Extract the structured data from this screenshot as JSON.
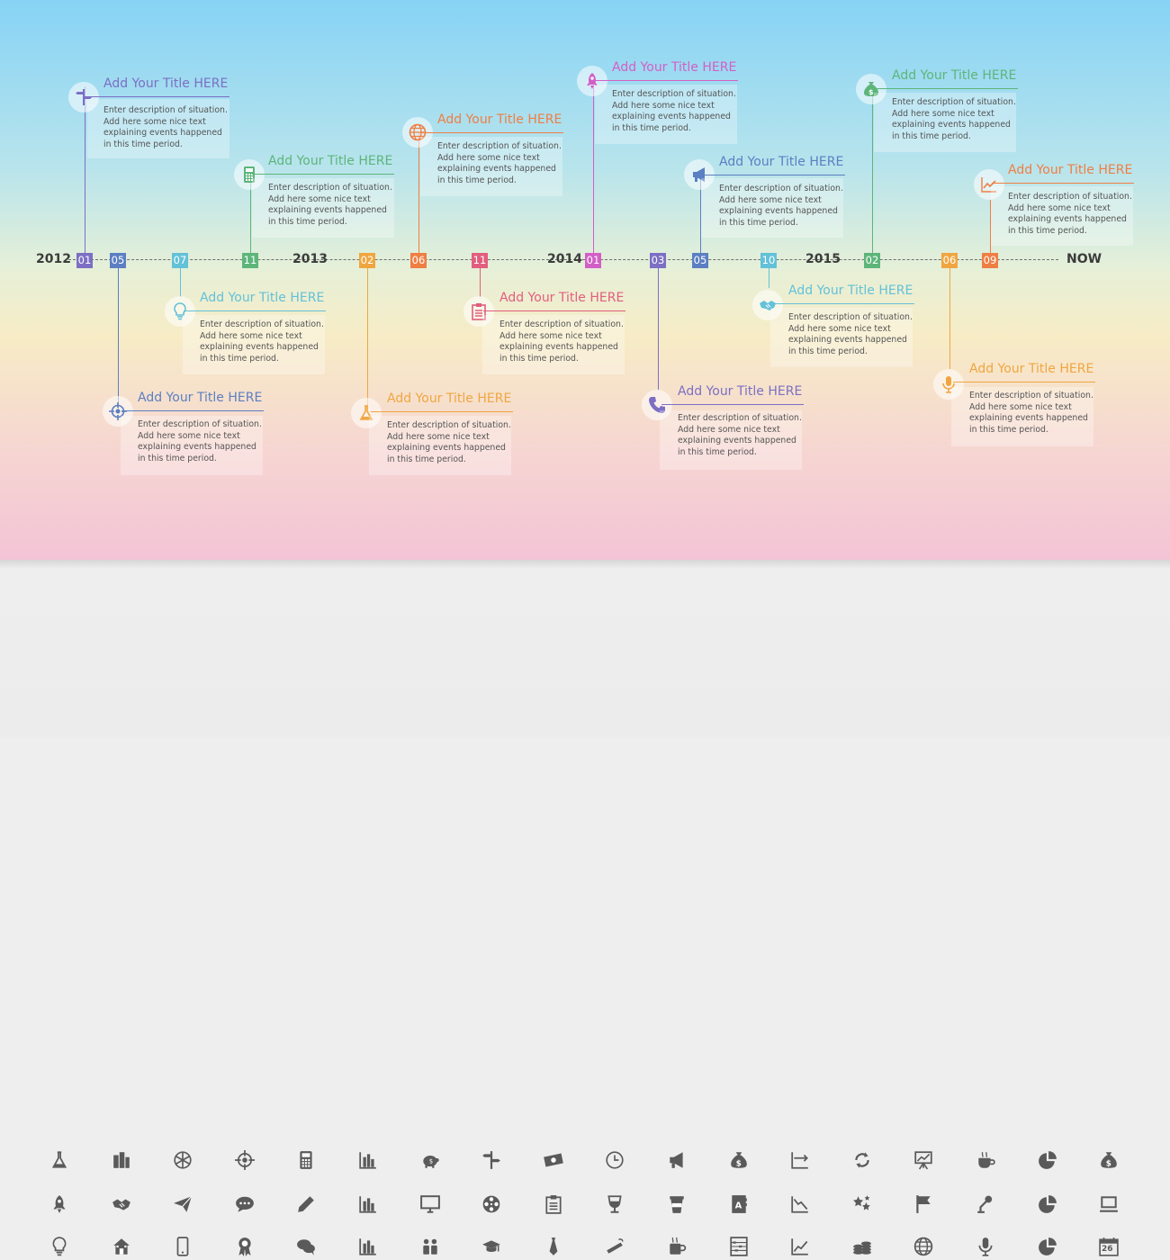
{
  "timeline": {
    "years": [
      "2012",
      "2013",
      "2014",
      "2015",
      "NOW"
    ],
    "markers": [
      {
        "label": "01",
        "color": "#7c6fc4"
      },
      {
        "label": "05",
        "color": "#5b7fc2"
      },
      {
        "label": "07",
        "color": "#63c1d8"
      },
      {
        "label": "11",
        "color": "#5db57a"
      },
      {
        "label": "02",
        "color": "#f0a640"
      },
      {
        "label": "06",
        "color": "#ef7e43"
      },
      {
        "label": "11",
        "color": "#e25e7e"
      },
      {
        "label": "01",
        "color": "#d35fc6"
      },
      {
        "label": "03",
        "color": "#7c6fc4"
      },
      {
        "label": "05",
        "color": "#5b7fc2"
      },
      {
        "label": "10",
        "color": "#63c1d8"
      },
      {
        "label": "02",
        "color": "#5db57a"
      },
      {
        "label": "06",
        "color": "#f0a640"
      },
      {
        "label": "09",
        "color": "#ef7e43"
      }
    ],
    "events": [
      {
        "title": "Add Your Title HERE",
        "color": "#7c6fc4",
        "icon": "signpost-icon",
        "description": "Enter description of situation.\nAdd here some nice text\nexplaining events happened\nin this time period."
      },
      {
        "title": "Add Your Title HERE",
        "color": "#5b7fc2",
        "icon": "target-icon",
        "description": "Enter description of situation.\nAdd here some nice text\nexplaining events happened\nin this time period."
      },
      {
        "title": "Add Your Title HERE",
        "color": "#63c1d8",
        "icon": "lightbulb-icon",
        "description": "Enter description of situation.\nAdd here some nice text\nexplaining events happened\nin this time period."
      },
      {
        "title": "Add Your Title HERE",
        "color": "#5db57a",
        "icon": "calculator-icon",
        "description": "Enter description of situation.\nAdd here some nice text\nexplaining events happened\nin this time period."
      },
      {
        "title": "Add Your Title HERE",
        "color": "#f0a640",
        "icon": "flask-icon",
        "description": "Enter description of situation.\nAdd here some nice text\nexplaining events happened\nin this time period."
      },
      {
        "title": "Add Your Title HERE",
        "color": "#ef7e43",
        "icon": "globe-icon",
        "description": "Enter description of situation.\nAdd here some nice text\nexplaining events happened\nin this time period."
      },
      {
        "title": "Add Your Title HERE",
        "color": "#e25e7e",
        "icon": "clipboard-icon",
        "description": "Enter description of situation.\nAdd here some nice text\nexplaining events happened\nin this time period."
      },
      {
        "title": "Add Your Title HERE",
        "color": "#d35fc6",
        "icon": "rocket-icon",
        "description": "Enter description of situation.\nAdd here some nice text\nexplaining events happened\nin this time period."
      },
      {
        "title": "Add Your Title HERE",
        "color": "#7c6fc4",
        "icon": "phone-icon",
        "description": "Enter description of situation.\nAdd here some nice text\nexplaining events happened\nin this time period."
      },
      {
        "title": "Add Your Title HERE",
        "color": "#5b7fc2",
        "icon": "megaphone-icon",
        "description": "Enter description of situation.\nAdd here some nice text\nexplaining events happened\nin this time period."
      },
      {
        "title": "Add Your Title HERE",
        "color": "#63c1d8",
        "icon": "handshake-icon",
        "description": "Enter description of situation.\nAdd here some nice text\nexplaining events happened\nin this time period."
      },
      {
        "title": "Add Your Title HERE",
        "color": "#5db57a",
        "icon": "money-bag-icon",
        "description": "Enter description of situation.\nAdd here some nice text\nexplaining events happened\nin this time period."
      },
      {
        "title": "Add Your Title HERE",
        "color": "#f0a640",
        "icon": "microphone-icon",
        "description": "Enter description of situation.\nAdd here some nice text\nexplaining events happened\nin this time period."
      },
      {
        "title": "Add Your Title HERE",
        "color": "#ef7e43",
        "icon": "line-chart-icon",
        "description": "Enter description of situation.\nAdd here some nice text\nexplaining events happened\nin this time period."
      }
    ]
  },
  "icon_set": {
    "color": "#5a5a5a",
    "rows": [
      [
        "flask-icon",
        "buildings-icon",
        "snowflake-icon",
        "target-icon",
        "calculator-icon",
        "bar-chart-icon",
        "piggy-bank-icon",
        "signpost-icon",
        "banknote-icon",
        "clock-icon",
        "megaphone-icon",
        "money-bag-icon",
        "axis-chart-icon",
        "refresh-icon",
        "presentation-board-icon",
        "coffee-cup-icon",
        "pie-chart-icon",
        "money-bag-icon"
      ],
      [
        "rocket-icon",
        "handshake-icon",
        "paper-plane-icon",
        "speech-bubble-icon",
        "pencil-icon",
        "bar-chart-icon",
        "monitor-icon",
        "film-reel-icon",
        "clipboard-icon",
        "wine-glass-icon",
        "takeaway-cup-icon",
        "address-book-icon",
        "declining-chart-icon",
        "stars-icon",
        "flag-icon",
        "microphone-stand-icon",
        "pie-chart-icon",
        "laptop-icon"
      ],
      [
        "lightbulb-icon",
        "house-icon",
        "smartphone-icon",
        "award-ribbon-icon",
        "chat-bubbles-icon",
        "bar-chart-icon",
        "people-icon",
        "graduation-cap-icon",
        "necktie-icon",
        "cigarette-icon",
        "coffee-mug-icon",
        "abacus-icon",
        "rising-chart-icon",
        "coins-icon",
        "globe-icon",
        "microphone-icon",
        "pie-chart-icon",
        "calendar-icon"
      ]
    ],
    "calendar_day": "26"
  }
}
